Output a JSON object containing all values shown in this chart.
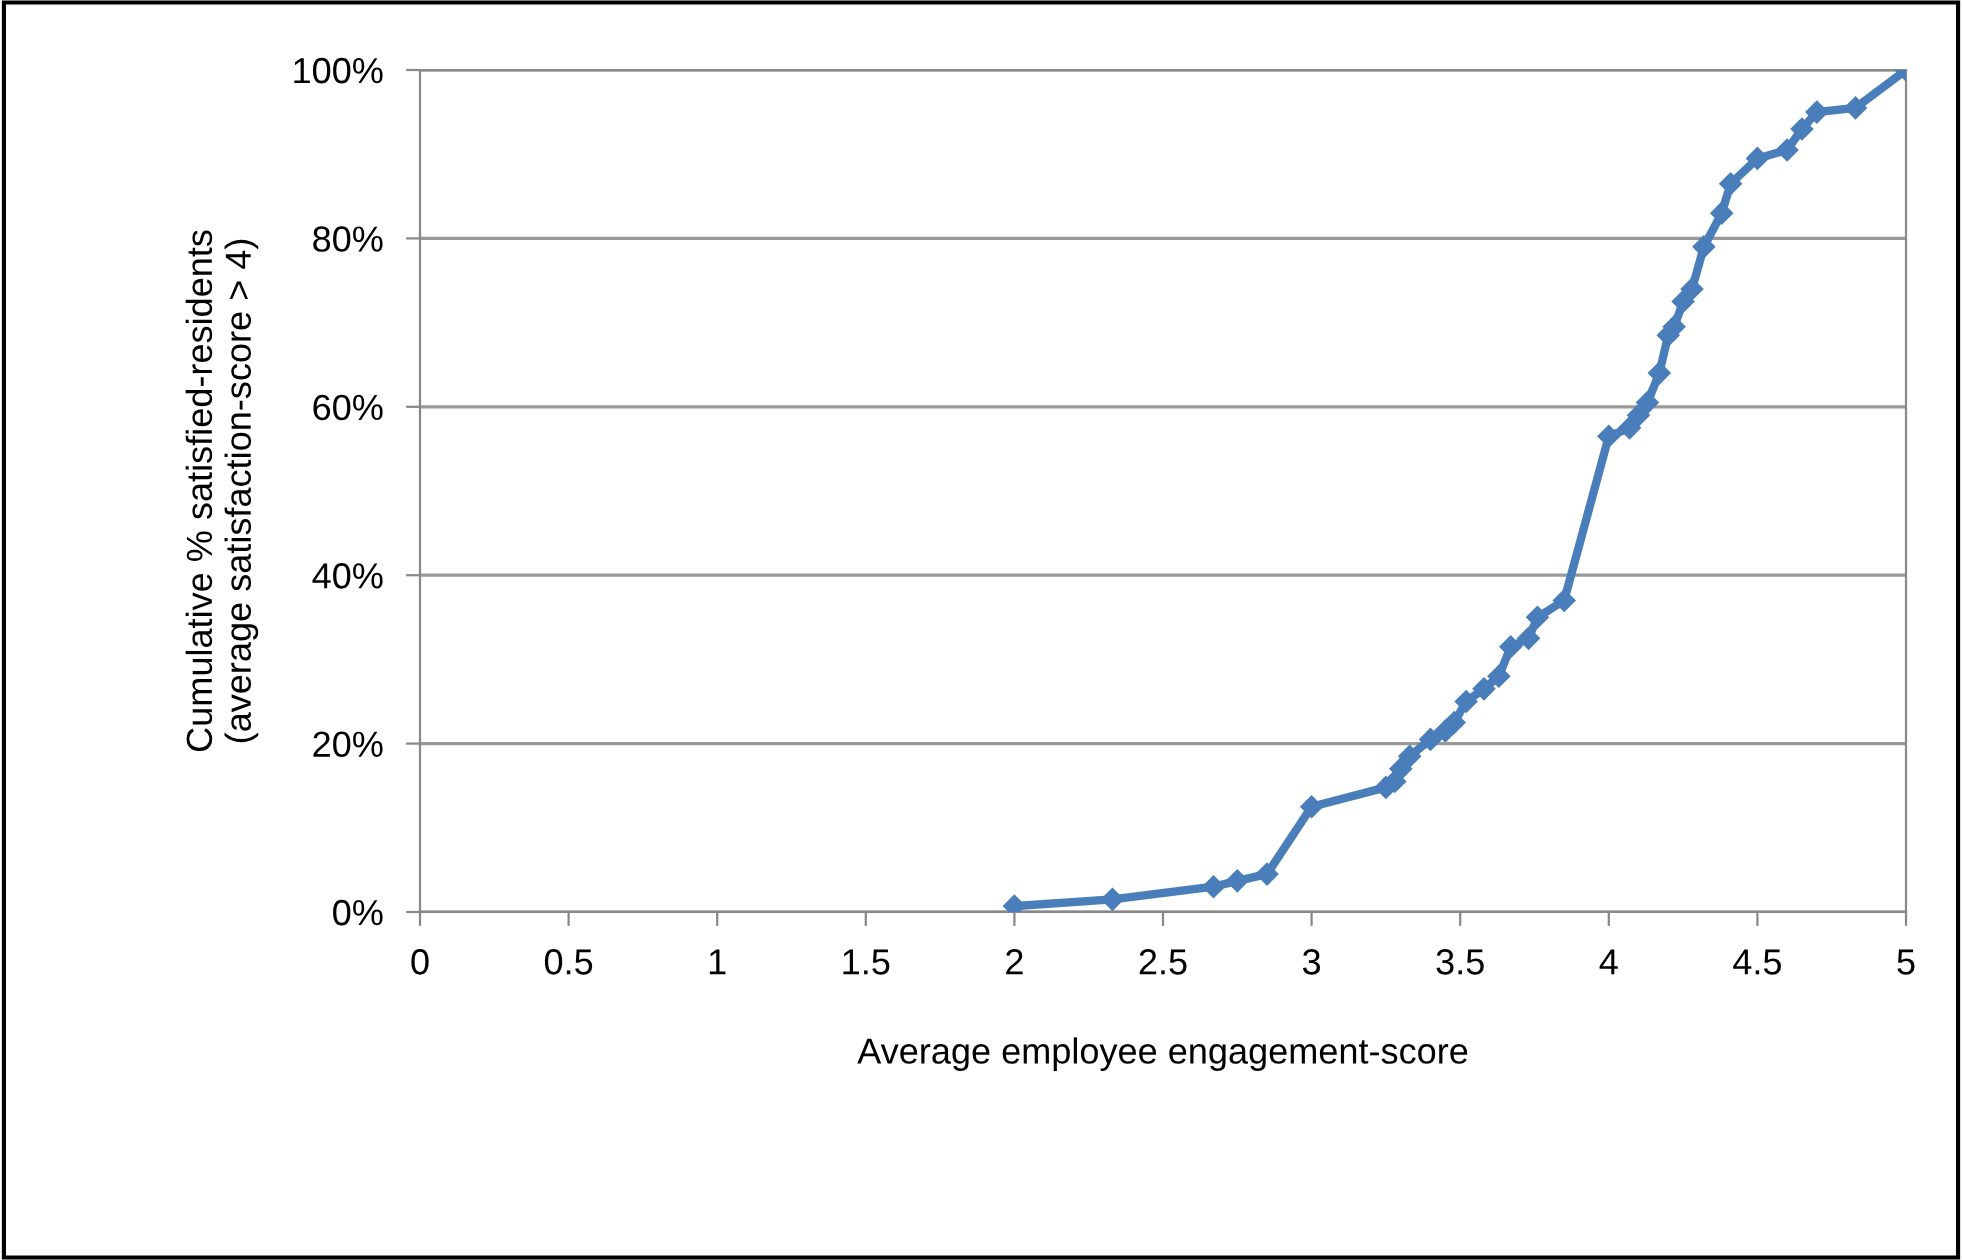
{
  "chart_data": {
    "type": "line",
    "xlabel": "Average employee engagement-score",
    "ylabel": "Cumulative % satisfied-residents\n(average satisfaction-score > 4)",
    "x": [
      2.0,
      2.33,
      2.67,
      2.75,
      2.85,
      3.0,
      3.25,
      3.28,
      3.3,
      3.33,
      3.4,
      3.45,
      3.48,
      3.52,
      3.58,
      3.63,
      3.67,
      3.73,
      3.76,
      3.85,
      4.0,
      4.07,
      4.1,
      4.13,
      4.17,
      4.2,
      4.22,
      4.25,
      4.28,
      4.32,
      4.38,
      4.41,
      4.5,
      4.6,
      4.65,
      4.7,
      4.83,
      5.0
    ],
    "series": [
      {
        "color": "#4a7ebb",
        "values": [
          0.7,
          1.5,
          3.0,
          3.7,
          4.5,
          12.5,
          14.8,
          15.5,
          17,
          18.5,
          20.5,
          21.5,
          22.5,
          25,
          26.5,
          28,
          31.5,
          32.5,
          35,
          37,
          56.5,
          57.5,
          59,
          60.5,
          64,
          68.5,
          69.5,
          72.5,
          74,
          79,
          83,
          86.5,
          89.5,
          90.5,
          93,
          95,
          95.5,
          100
        ]
      }
    ],
    "xlim": [
      0,
      5
    ],
    "xticks": [
      0,
      0.5,
      1,
      1.5,
      2,
      2.5,
      3,
      3.5,
      4,
      4.5,
      5
    ],
    "ylim": [
      0,
      100
    ],
    "yticks": [
      {
        "value": 0,
        "label": "0%"
      },
      {
        "value": 20,
        "label": "20%"
      },
      {
        "value": 40,
        "label": "40%"
      },
      {
        "value": 60,
        "label": "60%"
      },
      {
        "value": 80,
        "label": "80%"
      },
      {
        "value": 100,
        "label": "100%"
      }
    ],
    "grid": "y",
    "legend": false,
    "marker": "diamond",
    "line_style": "solid"
  }
}
